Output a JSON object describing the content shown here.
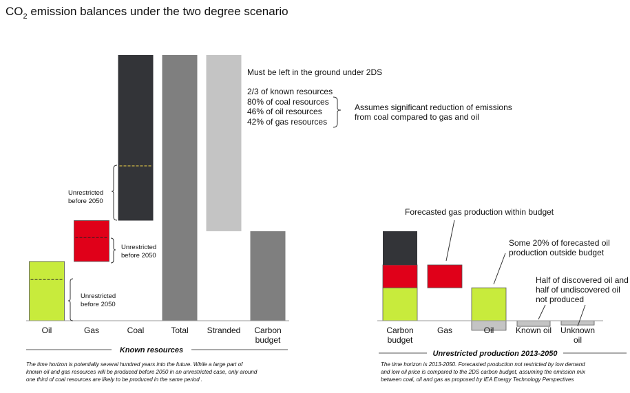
{
  "title": {
    "main": "CO",
    "sub": "2",
    "rest": " emission balances under the two degree scenario"
  },
  "colors": {
    "oil": "#c8eb3c",
    "gas": "#e00019",
    "coal": "#333438",
    "total": "#7f7f7f",
    "stranded": "#c4c4c4",
    "budget": "#7f7f7f"
  },
  "chart_data": [
    {
      "type": "bar",
      "title": "",
      "section_label": "Known resources",
      "categories": [
        "Oil",
        "Gas",
        "Coal",
        "Total",
        "Stranded",
        "Carbon budget"
      ],
      "ylim": [
        0,
        100
      ],
      "bars": [
        {
          "category": "Oil",
          "bottom": 0,
          "top": 22.3,
          "color": "oil",
          "dashed_at": 15.5,
          "bracket_label": [
            "Unrestricted",
            "before 2050"
          ]
        },
        {
          "category": "Gas",
          "bottom": 22.3,
          "top": 37.7,
          "color": "gas",
          "dashed_at": 31.3,
          "bracket_label": [
            "Unrestricted",
            "before 2050"
          ]
        },
        {
          "category": "Coal",
          "bottom": 37.7,
          "top": 100,
          "color": "coal",
          "dashed_at": 58.3,
          "bracket_label": [
            "Unrestricted",
            "before 2050"
          ]
        },
        {
          "category": "Total",
          "bottom": 0,
          "top": 100,
          "color": "total"
        },
        {
          "category": "Stranded",
          "bottom": 33.7,
          "top": 100,
          "color": "stranded"
        },
        {
          "category": "Carbon budget",
          "bottom": 0,
          "top": 33.7,
          "color": "budget"
        }
      ],
      "annotations": {
        "headline": "Must be left in the ground under 2DS",
        "list": [
          "2/3 of known resources",
          "80% of coal resources",
          "46% of oil resources",
          "42% of gas resources"
        ],
        "bracket_note": [
          "Assumes significant reduction of emissions",
          "from coal compared  to gas and oil"
        ]
      },
      "footnote": [
        "The time horizon is potentially several hundred years into the future.  While a large part of",
        "known oil and gas resources will be produced before 2050 in an unrestricted case, only around",
        "one third of coal resources  are likely to be produced in the same period ."
      ]
    },
    {
      "type": "bar",
      "title": "",
      "section_label": "Unrestricted production 2013-2050",
      "categories": [
        "Carbon budget",
        "Gas",
        "Oil",
        "Known oil",
        "Unknown oil"
      ],
      "ylim": [
        -4,
        100
      ],
      "bars": [
        {
          "category": "Carbon budget",
          "bottom": 0,
          "top": 12.4,
          "color": "oil"
        },
        {
          "category": "Carbon budget",
          "bottom": 12.4,
          "top": 21.0,
          "color": "gas"
        },
        {
          "category": "Carbon budget",
          "bottom": 21.0,
          "top": 33.7,
          "color": "coal"
        },
        {
          "category": "Gas",
          "bottom": 12.4,
          "top": 21.0,
          "color": "gas"
        },
        {
          "category": "Oil",
          "bottom": 0,
          "top": 12.4,
          "color": "oil"
        },
        {
          "category": "Oil",
          "bottom": -3.6,
          "top": 0,
          "color": "stranded"
        },
        {
          "category": "Known oil",
          "bottom": -2.1,
          "top": 0,
          "color": "stranded"
        },
        {
          "category": "Unknown oil",
          "bottom": -1.6,
          "top": 0,
          "color": "stranded"
        }
      ],
      "annotations": {
        "gas_note": "Forecasted gas production within budget",
        "oil_note": [
          "Some 20% of forecasted oil",
          "production outside budget"
        ],
        "undiscovered_note": [
          "Half of discovered oil and",
          "half of undiscovered oil",
          "not produced"
        ]
      },
      "footnote": [
        "The time horizon is 2013-2050. Forecasted production not restricted by low demand",
        "and low oil price is compared to the 2DS carbon budget, assuming the emission mix",
        "between coal, oil and gas as proposed by IEA Energy Technology Perspectives"
      ]
    }
  ]
}
